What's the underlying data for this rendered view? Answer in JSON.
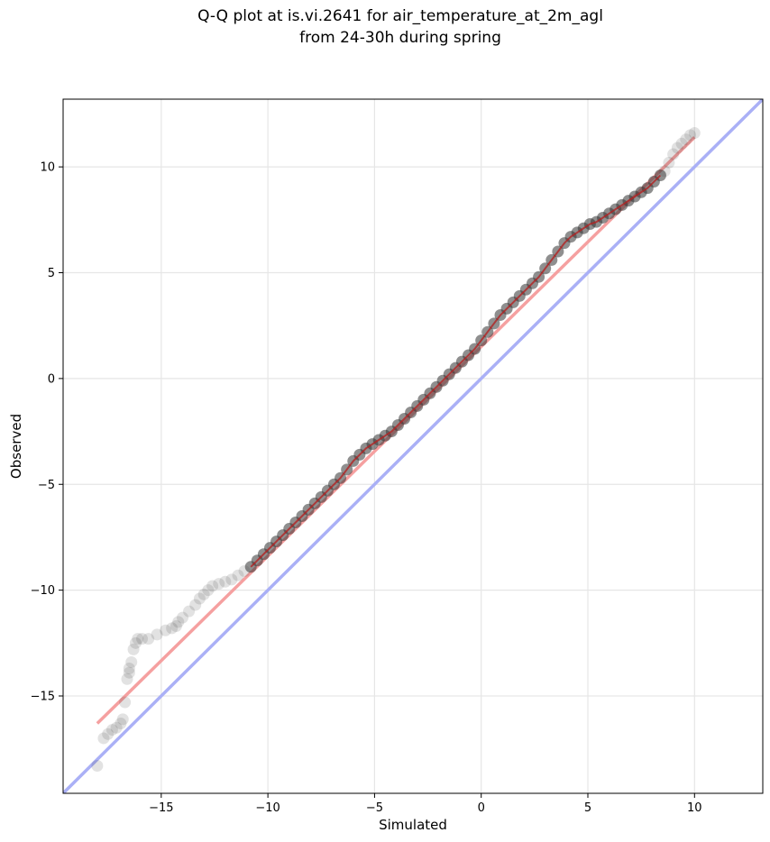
{
  "chart_data": {
    "type": "scatter",
    "title": "Q-Q plot at is.vi.2641 for air_temperature_at_2m_agl",
    "subtitle": "from 24-30h during spring",
    "xlabel": "Simulated",
    "ylabel": "Observed",
    "xlim": [
      -19.6,
      13.2
    ],
    "ylim": [
      -19.6,
      13.2
    ],
    "xticks": [
      -15,
      -10,
      -5,
      0,
      5,
      10
    ],
    "yticks": [
      -15,
      -10,
      -5,
      0,
      5,
      10
    ],
    "xtick_labels": [
      "−15",
      "−10",
      "−5",
      "0",
      "5",
      "10"
    ],
    "ytick_labels": [
      "−15",
      "−10",
      "−5",
      "0",
      "5",
      "10"
    ],
    "grid": true,
    "colors": {
      "points": "#333333",
      "identity_line": "#aab0f6",
      "fit_line": "#f5a0a0",
      "fit_line_core": "#b22222",
      "grid": "#e6e6e6"
    },
    "series": [
      {
        "kind": "quantiles",
        "x": [
          -18.0,
          -17.7,
          -17.5,
          -17.3,
          -17.1,
          -16.9,
          -16.8,
          -16.7,
          -16.6,
          -16.5,
          -16.5,
          -16.4,
          -16.3,
          -16.2,
          -16.1,
          -15.9,
          -15.6,
          -15.2,
          -14.8,
          -14.5,
          -14.3,
          -14.2,
          -14.0,
          -13.7,
          -13.4,
          -13.2,
          -13.0,
          -12.8,
          -12.6,
          -12.3,
          -12.0,
          -11.7,
          -11.4,
          -11.1,
          -10.8,
          -10.5,
          -10.2,
          -9.9,
          -9.6,
          -9.3,
          -9.0,
          -8.7,
          -8.4,
          -8.1,
          -7.8,
          -7.5,
          -7.2,
          -6.9,
          -6.6,
          -6.3,
          -6.0,
          -5.7,
          -5.4,
          -5.1,
          -4.8,
          -4.5,
          -4.2,
          -3.9,
          -3.6,
          -3.3,
          -3.0,
          -2.7,
          -2.4,
          -2.1,
          -1.8,
          -1.5,
          -1.2,
          -0.9,
          -0.6,
          -0.3,
          0.0,
          0.3,
          0.6,
          0.9,
          1.2,
          1.5,
          1.8,
          2.1,
          2.4,
          2.7,
          3.0,
          3.3,
          3.6,
          3.9,
          4.2,
          4.5,
          4.8,
          5.1,
          5.4,
          5.7,
          6.0,
          6.3,
          6.6,
          6.9,
          7.2,
          7.5,
          7.8,
          8.1,
          8.4,
          8.6,
          8.8,
          9.0,
          9.2,
          9.4,
          9.6,
          9.8,
          10.0
        ],
        "y": [
          -18.3,
          -17.0,
          -16.8,
          -16.6,
          -16.5,
          -16.3,
          -16.1,
          -15.3,
          -14.2,
          -13.9,
          -13.7,
          -13.4,
          -12.8,
          -12.5,
          -12.3,
          -12.3,
          -12.3,
          -12.1,
          -11.9,
          -11.8,
          -11.7,
          -11.5,
          -11.3,
          -11.0,
          -10.7,
          -10.4,
          -10.2,
          -10.0,
          -9.8,
          -9.7,
          -9.6,
          -9.5,
          -9.3,
          -9.1,
          -8.9,
          -8.6,
          -8.3,
          -8.0,
          -7.7,
          -7.4,
          -7.1,
          -6.8,
          -6.5,
          -6.2,
          -5.9,
          -5.6,
          -5.3,
          -5.0,
          -4.7,
          -4.3,
          -3.9,
          -3.6,
          -3.3,
          -3.1,
          -2.9,
          -2.7,
          -2.5,
          -2.2,
          -1.9,
          -1.6,
          -1.3,
          -1.0,
          -0.7,
          -0.4,
          -0.1,
          0.2,
          0.5,
          0.8,
          1.1,
          1.4,
          1.8,
          2.2,
          2.6,
          3.0,
          3.3,
          3.6,
          3.9,
          4.2,
          4.5,
          4.8,
          5.2,
          5.6,
          6.0,
          6.4,
          6.7,
          6.9,
          7.1,
          7.3,
          7.4,
          7.6,
          7.8,
          8.0,
          8.2,
          8.4,
          8.6,
          8.8,
          9.0,
          9.3,
          9.6,
          9.8,
          10.2,
          10.6,
          10.9,
          11.1,
          11.3,
          11.5,
          11.6
        ]
      },
      {
        "kind": "identity_line",
        "x": [
          -19.6,
          13.2
        ],
        "y": [
          -19.6,
          13.2
        ]
      },
      {
        "kind": "fit_line",
        "x": [
          -18.0,
          10.0
        ],
        "y": [
          -16.3,
          11.4
        ]
      }
    ]
  }
}
